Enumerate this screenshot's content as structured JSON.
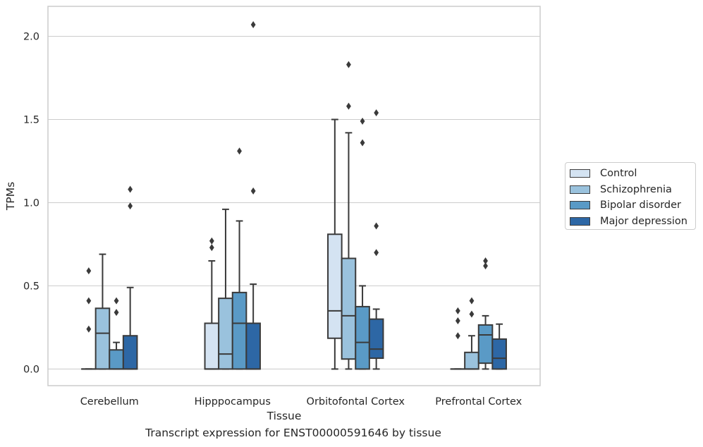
{
  "chart_data": {
    "type": "box",
    "xlabel": "Tissue",
    "ylabel": "TPMs",
    "ylim": [
      -0.1,
      2.18
    ],
    "yticks": [
      0.0,
      0.5,
      1.0,
      1.5,
      2.0
    ],
    "ytick_labels": [
      "0.0",
      "0.5",
      "1.0",
      "1.5",
      "2.0"
    ],
    "grid": "horizontal",
    "legend_position": "right",
    "categories": [
      "Cerebellum",
      "Hipppocampus",
      "Orbitofontal Cortex",
      "Prefrontal Cortex"
    ],
    "series": [
      {
        "name": "Control",
        "color": "#d4e3f2",
        "boxes": [
          {
            "min": 0,
            "q1": 0,
            "median": 0,
            "q3": 0,
            "max": 0,
            "outliers": [
              0.24,
              0.41,
              0.59
            ]
          },
          {
            "min": 0,
            "q1": 0,
            "median": 0,
            "q3": 0.275,
            "max": 0.65,
            "outliers": [
              0.73,
              0.77
            ]
          },
          {
            "min": 0,
            "q1": 0.185,
            "median": 0.35,
            "q3": 0.81,
            "max": 1.5,
            "outliers": []
          },
          {
            "min": 0,
            "q1": 0,
            "median": 0,
            "q3": 0,
            "max": 0,
            "outliers": [
              0.2,
              0.29,
              0.35
            ]
          }
        ]
      },
      {
        "name": "Schizophrenia",
        "color": "#9ac2dd",
        "boxes": [
          {
            "min": 0,
            "q1": 0,
            "median": 0.215,
            "q3": 0.365,
            "max": 0.69,
            "outliers": []
          },
          {
            "min": 0,
            "q1": 0,
            "median": 0.09,
            "q3": 0.425,
            "max": 0.96,
            "outliers": []
          },
          {
            "min": 0,
            "q1": 0.06,
            "median": 0.32,
            "q3": 0.665,
            "max": 1.42,
            "outliers": [
              1.58,
              1.83
            ]
          },
          {
            "min": 0,
            "q1": 0,
            "median": 0,
            "q3": 0.1,
            "max": 0.2,
            "outliers": [
              0.33,
              0.41
            ]
          }
        ]
      },
      {
        "name": "Bipolar disorder",
        "color": "#5a9ac6",
        "boxes": [
          {
            "min": 0,
            "q1": 0,
            "median": 0,
            "q3": 0.115,
            "max": 0.16,
            "outliers": [
              0.34,
              0.41
            ]
          },
          {
            "min": 0,
            "q1": 0,
            "median": 0.275,
            "q3": 0.46,
            "max": 0.89,
            "outliers": [
              1.31
            ]
          },
          {
            "min": 0,
            "q1": 0,
            "median": 0.16,
            "q3": 0.375,
            "max": 0.5,
            "outliers": [
              1.36,
              1.49
            ]
          },
          {
            "min": 0,
            "q1": 0.035,
            "median": 0.205,
            "q3": 0.265,
            "max": 0.32,
            "outliers": [
              0.62,
              0.65
            ]
          }
        ]
      },
      {
        "name": "Major depression",
        "color": "#2d67a5",
        "boxes": [
          {
            "min": 0,
            "q1": 0,
            "median": 0,
            "q3": 0.2,
            "max": 0.49,
            "outliers": [
              0.98,
              1.08
            ]
          },
          {
            "min": 0,
            "q1": 0,
            "median": 0,
            "q3": 0.275,
            "max": 0.51,
            "outliers": [
              1.07,
              2.07
            ]
          },
          {
            "min": 0,
            "q1": 0.065,
            "median": 0.12,
            "q3": 0.3,
            "max": 0.36,
            "outliers": [
              0.7,
              0.86,
              1.54
            ]
          },
          {
            "min": 0,
            "q1": 0,
            "median": 0.065,
            "q3": 0.18,
            "max": 0.27,
            "outliers": []
          }
        ]
      }
    ]
  },
  "caption": "Transcript expression for ENST00000591646 by tissue",
  "colors": {
    "grid": "#cccccc",
    "frame": "#cccccc",
    "line": "#3a3a3a",
    "text": "#262626"
  }
}
